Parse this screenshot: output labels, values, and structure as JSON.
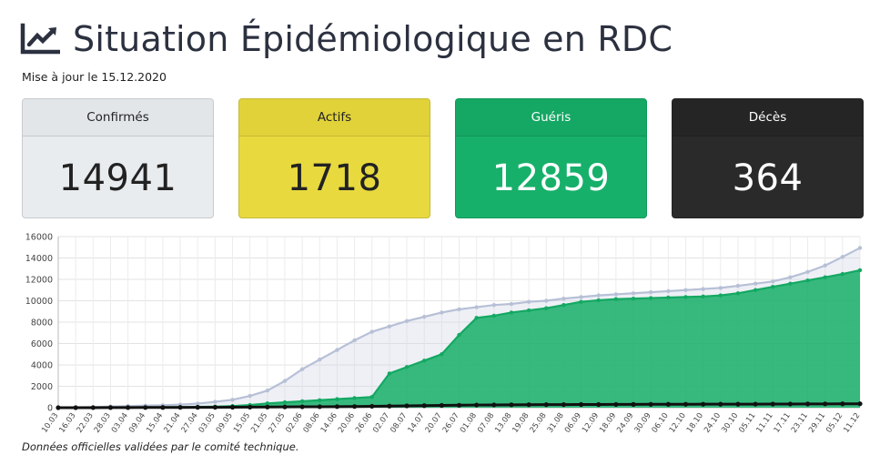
{
  "header": {
    "title": "Situation Épidémiologique en RDC",
    "updated": "Mise à jour le 15.12.2020",
    "icon": "chart-line-icon"
  },
  "cards": [
    {
      "label": "Confirmés",
      "value": "14941",
      "bg": "#e9ecef",
      "header_bg": "#e3e6e9",
      "fg": "#222222"
    },
    {
      "label": "Actifs",
      "value": "1718",
      "bg": "#e8d93f",
      "header_bg": "#e1d23a",
      "fg": "#222222"
    },
    {
      "label": "Guéris",
      "value": "12859",
      "bg": "#17b06b",
      "header_bg": "#15a764",
      "fg": "#ffffff"
    },
    {
      "label": "Décès",
      "value": "364",
      "bg": "#2a2a2b",
      "header_bg": "#252526",
      "fg": "#ffffff"
    }
  ],
  "footnote": "Données officielles validées par le comité technique.",
  "chart_data": {
    "type": "area",
    "ylim": [
      0,
      16000
    ],
    "yticks": [
      0,
      2000,
      4000,
      6000,
      8000,
      10000,
      12000,
      14000,
      16000
    ],
    "grid": true,
    "x_labels": [
      "10.03",
      "16.03",
      "22.03",
      "28.03",
      "03.04",
      "09.04",
      "15.04",
      "21.04",
      "27.04",
      "03.05",
      "09.05",
      "15.05",
      "21.05",
      "27.05",
      "02.06",
      "08.06",
      "14.06",
      "20.06",
      "26.06",
      "02.07",
      "08.07",
      "14.07",
      "20.07",
      "26.07",
      "01.08",
      "07.08",
      "13.08",
      "19.08",
      "25.08",
      "31.08",
      "06.09",
      "12.09",
      "18.09",
      "24.09",
      "30.09",
      "06.10",
      "12.10",
      "18.10",
      "24.10",
      "30.10",
      "05.11",
      "11.11",
      "17.11",
      "23.11",
      "29.11",
      "05.12",
      "11.12"
    ],
    "series": [
      {
        "colors": {
          "line": "#b7c0d6",
          "fill": "rgba(205,212,228,0.35)",
          "marker": "#b7c0d6"
        },
        "values": [
          1,
          30,
          60,
          110,
          150,
          190,
          230,
          290,
          380,
          550,
          740,
          1100,
          1600,
          2500,
          3600,
          4500,
          5400,
          6300,
          7100,
          7600,
          8100,
          8500,
          8900,
          9200,
          9400,
          9600,
          9700,
          9900,
          10000,
          10200,
          10350,
          10500,
          10600,
          10700,
          10800,
          10900,
          11000,
          11100,
          11200,
          11400,
          11600,
          11800,
          12200,
          12700,
          13300,
          14100,
          14941
        ]
      },
      {
        "colors": {
          "line": "#14a862",
          "fill": "rgba(22,175,105,0.85)",
          "marker": "#14a862"
        },
        "values": [
          0,
          2,
          5,
          10,
          20,
          30,
          40,
          55,
          75,
          100,
          150,
          250,
          400,
          500,
          600,
          700,
          800,
          900,
          1000,
          3200,
          3800,
          4400,
          5000,
          6800,
          8400,
          8600,
          8900,
          9100,
          9300,
          9600,
          9900,
          10050,
          10150,
          10200,
          10250,
          10300,
          10350,
          10400,
          10500,
          10700,
          11000,
          11300,
          11600,
          11900,
          12200,
          12500,
          12859
        ]
      },
      {
        "colors": {
          "line": "#111111",
          "fill": "none",
          "marker": "#111111"
        },
        "values": [
          0,
          2,
          5,
          8,
          12,
          18,
          22,
          26,
          30,
          35,
          40,
          50,
          60,
          70,
          80,
          90,
          100,
          110,
          130,
          150,
          170,
          190,
          210,
          230,
          250,
          260,
          270,
          280,
          285,
          290,
          295,
          300,
          305,
          310,
          315,
          320,
          322,
          325,
          327,
          330,
          335,
          340,
          345,
          350,
          355,
          360,
          364
        ]
      }
    ]
  }
}
